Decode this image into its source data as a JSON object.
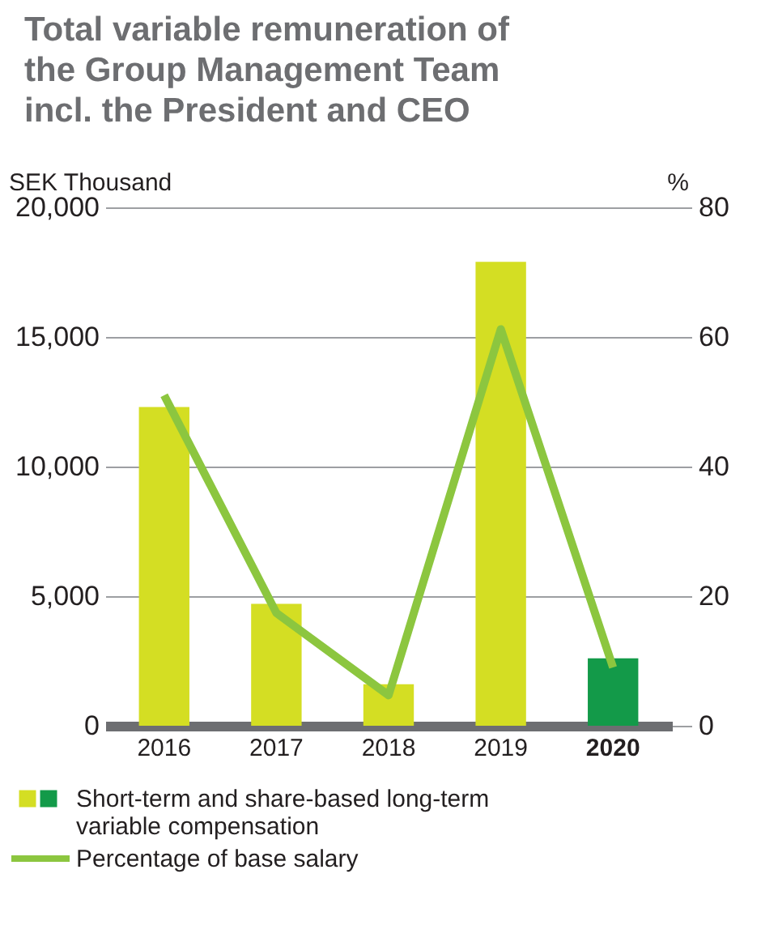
{
  "chart_data": {
    "type": "bar",
    "title": "Total variable remuneration of the Group Management Team incl. the President and CEO",
    "ylabel": "SEK Thousand",
    "y2label": "%",
    "categories": [
      "2016",
      "2017",
      "2018",
      "2019",
      "2020"
    ],
    "series": [
      {
        "name": "Short-term and share-based long-term variable compensation",
        "colors": [
          "#d4de23",
          "#d4de23",
          "#d4de23",
          "#d4de23",
          "#139a49"
        ],
        "values": [
          12300,
          4700,
          1600,
          17900,
          2600
        ]
      },
      {
        "name": "Percentage of base salary",
        "type": "line",
        "axis": "y2",
        "color": "#8cc63f",
        "values": [
          51,
          17.4,
          4.7,
          61.2,
          9.0
        ]
      }
    ],
    "ylim": [
      0,
      20000
    ],
    "yticks": [
      0,
      {
        "value": 5000,
        "label": "5,000"
      },
      {
        "value": 10000,
        "label": "10,000"
      },
      {
        "value": 15000,
        "label": "15,000"
      },
      {
        "value": 20000,
        "label": "20,000"
      }
    ],
    "y2lim": [
      0,
      80
    ],
    "y2ticks": [
      0,
      20,
      40,
      60,
      80
    ],
    "grid": "y",
    "legend": "bottom"
  }
}
